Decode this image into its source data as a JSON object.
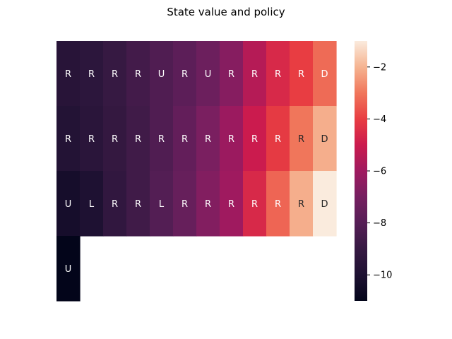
{
  "chart_data": {
    "type": "heatmap",
    "title": "State value and policy",
    "xlabel": "",
    "ylabel": "",
    "grid": false,
    "colormap": "rocket",
    "value_range": [
      -11.0,
      -1.0
    ],
    "colorbar": {
      "ticks": [
        -2,
        -4,
        -6,
        -8,
        -10
      ],
      "tick_labels": [
        "−2",
        "−4",
        "−6",
        "−8",
        "−10"
      ],
      "placement": "right"
    },
    "rows": [
      {
        "values": [
          -9.6,
          -9.4,
          -9.0,
          -8.6,
          -8.2,
          -7.8,
          -7.3,
          -6.6,
          -5.5,
          -4.6,
          -4.0,
          -3.2
        ],
        "labels": [
          "R",
          "R",
          "R",
          "R",
          "U",
          "R",
          "U",
          "R",
          "R",
          "R",
          "R",
          "D"
        ]
      },
      {
        "values": [
          -9.8,
          -9.5,
          -9.1,
          -8.7,
          -8.2,
          -7.6,
          -6.9,
          -6.1,
          -5.0,
          -4.1,
          -3.0,
          -2.1
        ],
        "labels": [
          "R",
          "R",
          "R",
          "R",
          "R",
          "R",
          "R",
          "R",
          "R",
          "R",
          "R",
          "D"
        ]
      },
      {
        "values": [
          -10.3,
          -10.0,
          -9.2,
          -8.7,
          -8.1,
          -7.5,
          -6.7,
          -6.0,
          -4.6,
          -3.3,
          -2.1,
          -1.0
        ],
        "labels": [
          "U",
          "L",
          "R",
          "R",
          "L",
          "R",
          "R",
          "R",
          "R",
          "R",
          "R",
          "D"
        ]
      },
      {
        "values": [
          -11.0
        ],
        "labels": [
          "U"
        ]
      }
    ]
  }
}
